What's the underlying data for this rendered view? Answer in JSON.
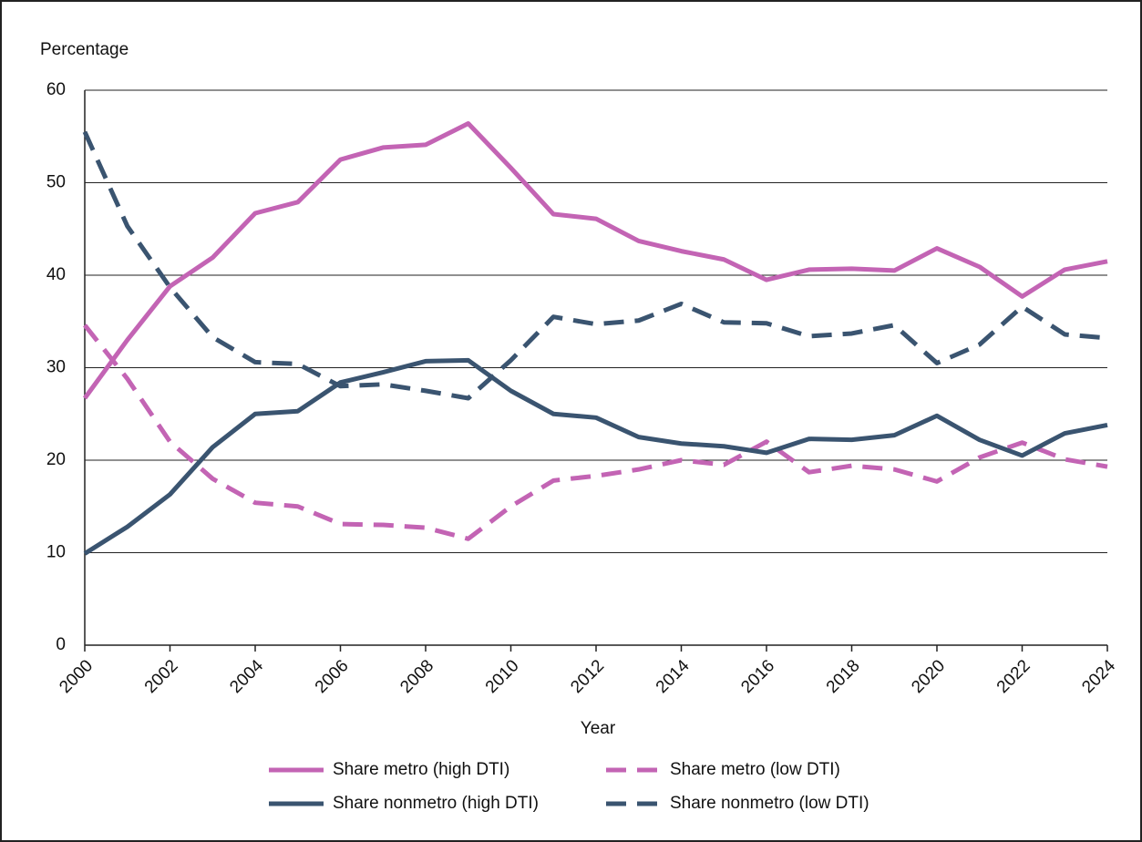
{
  "chart_data": {
    "type": "line",
    "ylabel": "Percentage",
    "xlabel": "Year",
    "x": [
      2000,
      2001,
      2002,
      2003,
      2004,
      2005,
      2006,
      2007,
      2008,
      2009,
      2010,
      2011,
      2012,
      2013,
      2014,
      2015,
      2016,
      2017,
      2018,
      2019,
      2020,
      2021,
      2022,
      2023,
      2024
    ],
    "series": [
      {
        "name": "Share metro (high DTI)",
        "color": "#c364b4",
        "dashed": false,
        "values": [
          26.7,
          33.0,
          38.8,
          41.9,
          46.7,
          47.9,
          52.5,
          53.8,
          54.1,
          56.4,
          51.6,
          46.6,
          46.1,
          43.7,
          42.6,
          41.7,
          39.5,
          40.6,
          40.7,
          40.5,
          42.9,
          40.9,
          37.7,
          40.6,
          41.5
        ]
      },
      {
        "name": "Share metro (low DTI)",
        "color": "#c364b4",
        "dashed": true,
        "values": [
          34.6,
          28.8,
          22.0,
          18.0,
          15.4,
          15.0,
          13.1,
          13.0,
          12.7,
          11.5,
          15.0,
          17.8,
          18.3,
          19.0,
          20.0,
          19.5,
          22.0,
          18.7,
          19.4,
          19.0,
          17.7,
          20.3,
          21.9,
          20.1,
          19.3
        ]
      },
      {
        "name": "Share nonmetro (high DTI)",
        "color": "#3a5470",
        "dashed": false,
        "values": [
          9.9,
          12.8,
          16.3,
          21.4,
          25.0,
          25.3,
          28.4,
          29.5,
          30.7,
          30.8,
          27.5,
          25.0,
          24.6,
          22.5,
          21.8,
          21.5,
          20.8,
          22.3,
          22.2,
          22.7,
          24.8,
          22.2,
          20.5,
          22.9,
          23.8
        ]
      },
      {
        "name": "Share nonmetro (low DTI)",
        "color": "#3a5470",
        "dashed": true,
        "values": [
          55.5,
          45.3,
          38.7,
          33.3,
          30.6,
          30.4,
          28.0,
          28.2,
          27.5,
          26.7,
          30.8,
          35.5,
          34.7,
          35.1,
          36.9,
          34.9,
          34.8,
          33.4,
          33.7,
          34.6,
          30.5,
          32.5,
          36.6,
          33.6,
          33.2
        ]
      }
    ],
    "xlim": [
      2000,
      2024
    ],
    "xticks": [
      2000,
      2002,
      2004,
      2006,
      2008,
      2010,
      2012,
      2014,
      2016,
      2018,
      2020,
      2022,
      2024
    ],
    "ylim": [
      0,
      60
    ],
    "yticks": [
      0,
      10,
      20,
      30,
      40,
      50,
      60
    ],
    "grid": true
  }
}
